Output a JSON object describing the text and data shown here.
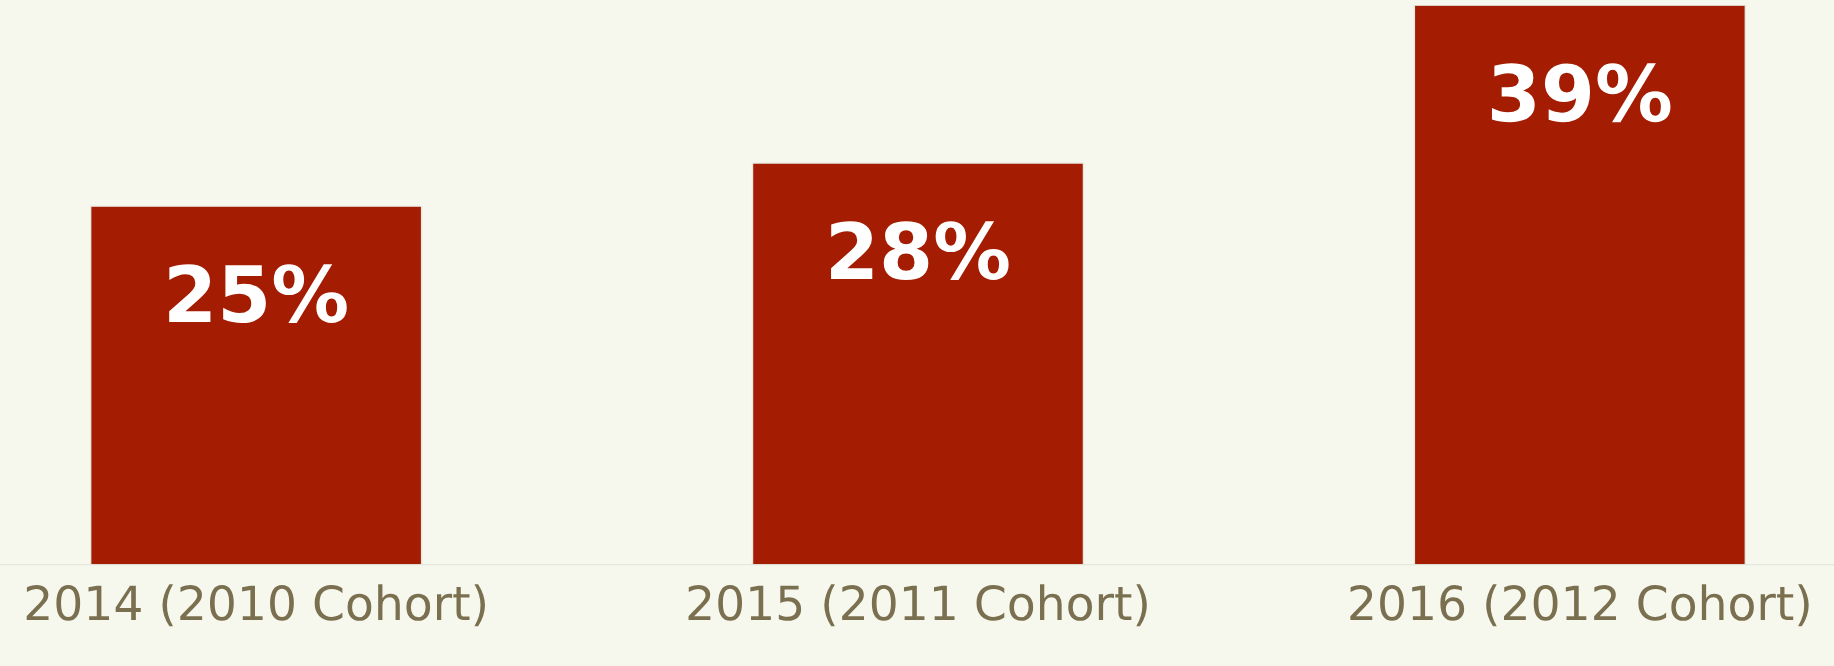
{
  "chart_data": {
    "type": "bar",
    "relative": false,
    "categories": [
      "2014 (2010 Cohort)",
      "2015 (2011 Cohort)",
      "2016 (2012 Cohort)"
    ],
    "values": [
      25,
      28,
      39
    ],
    "value_labels": [
      "25%",
      "28%",
      "39%"
    ],
    "color": "#a41d02",
    "grid": false,
    "legend": false
  }
}
